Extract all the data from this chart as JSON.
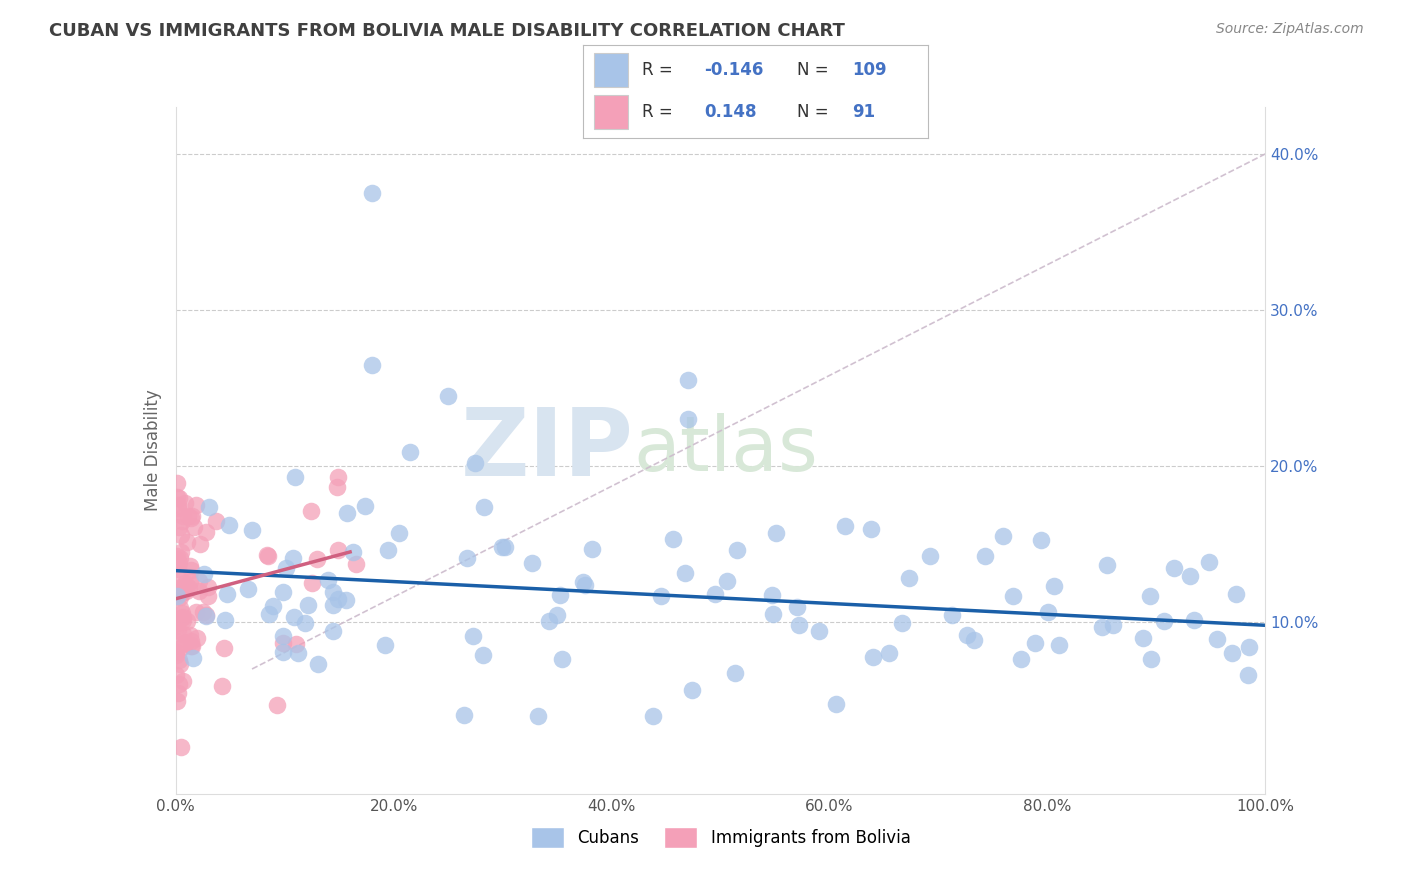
{
  "title": "CUBAN VS IMMIGRANTS FROM BOLIVIA MALE DISABILITY CORRELATION CHART",
  "source": "Source: ZipAtlas.com",
  "ylabel": "Male Disability",
  "watermark_zip": "ZIP",
  "watermark_atlas": "atlas",
  "legend_labels": [
    "Cubans",
    "Immigrants from Bolivia"
  ],
  "legend_r": [
    -0.146,
    0.148
  ],
  "legend_n": [
    109,
    91
  ],
  "xlim": [
    0.0,
    1.0
  ],
  "ylim": [
    -0.01,
    0.43
  ],
  "xticks": [
    0.0,
    0.2,
    0.4,
    0.6,
    0.8,
    1.0
  ],
  "yticks": [
    0.1,
    0.2,
    0.3,
    0.4
  ],
  "ytick_labels": [
    "10.0%",
    "20.0%",
    "30.0%",
    "40.0%"
  ],
  "xtick_labels": [
    "0.0%",
    "20.0%",
    "40.0%",
    "60.0%",
    "80.0%",
    "100.0%"
  ],
  "blue_color": "#a8c4e8",
  "pink_color": "#f4a0b8",
  "blue_line_color": "#1a5fa8",
  "pink_line_color": "#d06080",
  "ref_line_color": "#ccbbcc",
  "background_color": "#ffffff",
  "title_color": "#404040",
  "blue_N": 109,
  "pink_N": 91,
  "blue_line_start_y": 0.133,
  "blue_line_end_y": 0.098,
  "pink_line_x0": 0.0,
  "pink_line_y0": 0.115,
  "pink_line_x1": 0.16,
  "pink_line_y1": 0.145,
  "ref_line_x0": 0.07,
  "ref_line_y0": 0.07,
  "ref_line_x1": 1.0,
  "ref_line_y1": 0.4
}
